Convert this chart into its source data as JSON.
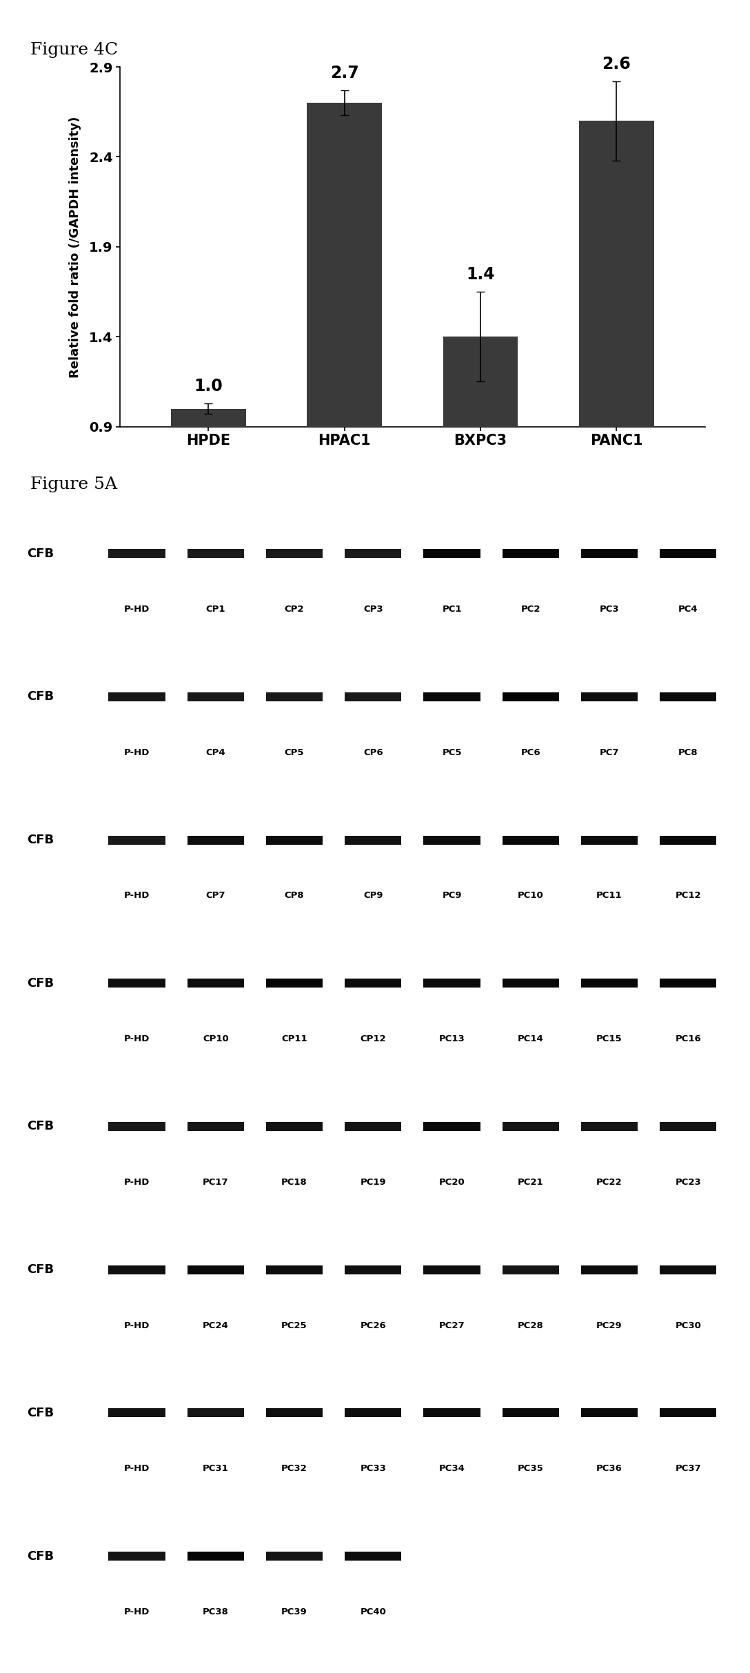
{
  "fig4c_title": "Figure 4C",
  "fig4c_categories": [
    "HPDE",
    "HPAC1",
    "BXPC3",
    "PANC1"
  ],
  "fig4c_values": [
    1.0,
    2.7,
    1.4,
    2.6
  ],
  "fig4c_errors": [
    0.03,
    0.07,
    0.25,
    0.22
  ],
  "fig4c_ylabel": "Relative fold ratio (/GAPDH intensity)",
  "fig4c_ylim": [
    0.9,
    2.9
  ],
  "fig4c_yticks": [
    0.9,
    1.4,
    1.9,
    2.4,
    2.9
  ],
  "fig4c_bar_color": "#3a3a3a",
  "fig4c_bar_width": 0.55,
  "fig5a_title": "Figure 5A",
  "fig5a_rows": [
    {
      "label": "CFB",
      "samples": [
        "P-HD",
        "CP1",
        "CP2",
        "CP3",
        "PC1",
        "PC2",
        "PC3",
        "PC4"
      ]
    },
    {
      "label": "CFB",
      "samples": [
        "P-HD",
        "CP4",
        "CP5",
        "CP6",
        "PC5",
        "PC6",
        "PC7",
        "PC8"
      ]
    },
    {
      "label": "CFB",
      "samples": [
        "P-HD",
        "CP7",
        "CP8",
        "CP9",
        "PC9",
        "PC10",
        "PC11",
        "PC12"
      ]
    },
    {
      "label": "CFB",
      "samples": [
        "P-HD",
        "CP10",
        "CP11",
        "CP12",
        "PC13",
        "PC14",
        "PC15",
        "PC16"
      ]
    },
    {
      "label": "CFB",
      "samples": [
        "P-HD",
        "PC17",
        "PC18",
        "PC19",
        "PC20",
        "PC21",
        "PC22",
        "PC23"
      ]
    },
    {
      "label": "CFB",
      "samples": [
        "P-HD",
        "PC24",
        "PC25",
        "PC26",
        "PC27",
        "PC28",
        "PC29",
        "PC30"
      ]
    },
    {
      "label": "CFB",
      "samples": [
        "P-HD",
        "PC31",
        "PC32",
        "PC33",
        "PC34",
        "PC35",
        "PC36",
        "PC37"
      ]
    },
    {
      "label": "CFB",
      "samples": [
        "P-HD",
        "PC38",
        "PC39",
        "PC40"
      ]
    }
  ],
  "fig5a_band_intensities": [
    [
      0.15,
      0.12,
      0.12,
      0.12,
      0.75,
      0.82,
      0.78,
      0.75
    ],
    [
      0.2,
      0.18,
      0.18,
      0.18,
      0.72,
      0.88,
      0.55,
      0.65
    ],
    [
      0.15,
      0.55,
      0.6,
      0.42,
      0.62,
      0.68,
      0.6,
      0.72
    ],
    [
      0.52,
      0.58,
      0.82,
      0.62,
      0.68,
      0.72,
      0.78,
      0.82
    ],
    [
      0.18,
      0.28,
      0.38,
      0.32,
      0.68,
      0.28,
      0.28,
      0.32
    ],
    [
      0.52,
      0.68,
      0.58,
      0.52,
      0.58,
      0.32,
      0.62,
      0.58
    ],
    [
      0.42,
      0.32,
      0.52,
      0.58,
      0.62,
      0.68,
      0.68,
      0.72
    ],
    [
      0.32,
      0.82,
      0.32,
      0.58,
      0.0,
      0.0,
      0.0,
      0.0
    ]
  ],
  "gel_bg_color": "#bebebe",
  "gel_band_color": "#1a1a1a",
  "label_color": "#000000",
  "background_color": "#ffffff"
}
